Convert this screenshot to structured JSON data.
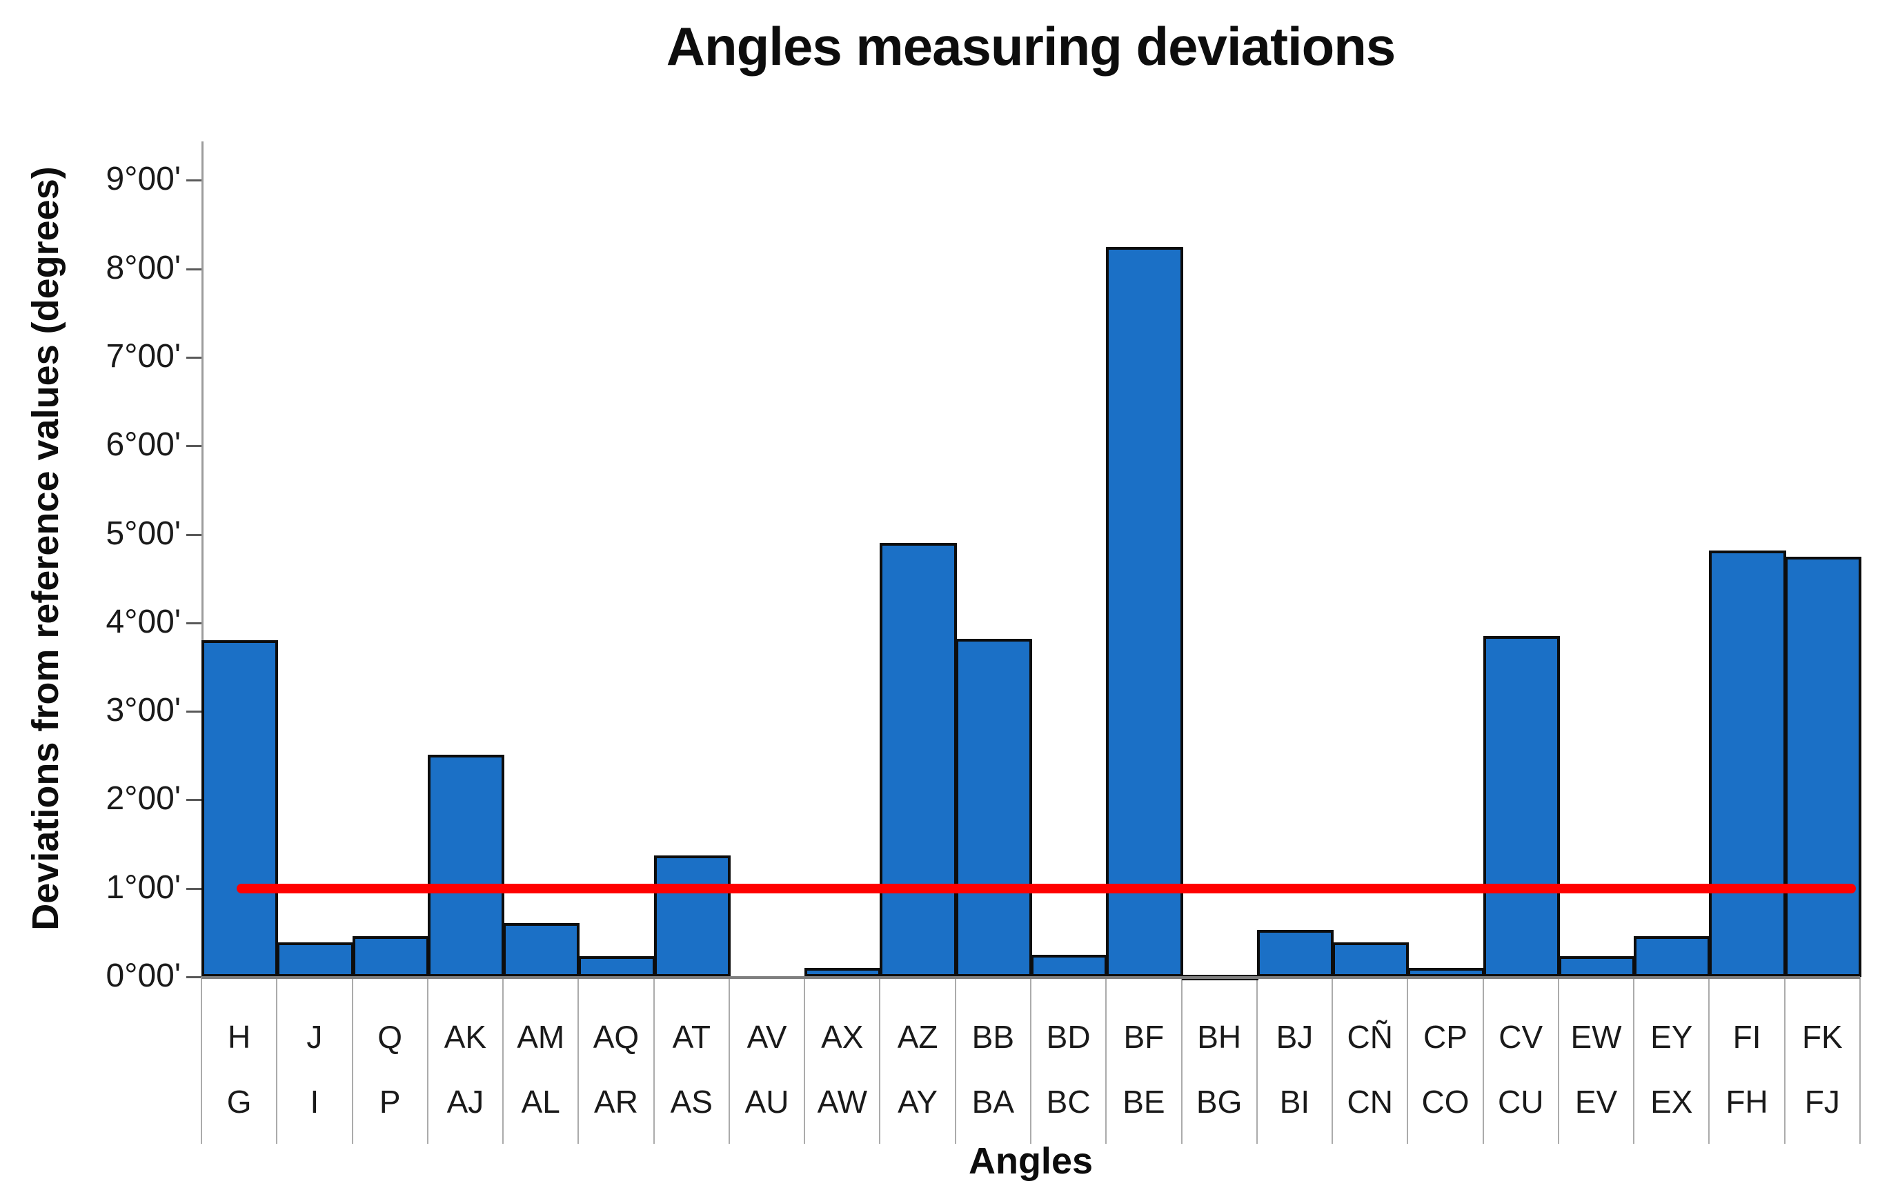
{
  "title": "Angles measuring deviations",
  "chart_data": {
    "type": "bar",
    "title": "Angles measuring deviations",
    "xlabel": "Angles",
    "ylabel": "Deviations from reference values (degrees)",
    "categories_top": [
      "H",
      "J",
      "Q",
      "AK",
      "AM",
      "AQ",
      "AT",
      "AV",
      "AX",
      "AZ",
      "BB",
      "BD",
      "BF",
      "BH",
      "BJ",
      "CÑ",
      "CP",
      "CV",
      "EW",
      "EY",
      "FI",
      "FK"
    ],
    "categories_bottom": [
      "G",
      "I",
      "P",
      "AJ",
      "AL",
      "AR",
      "AS",
      "AU",
      "AW",
      "AY",
      "BA",
      "BC",
      "BE",
      "BG",
      "BI",
      "CN",
      "CO",
      "CU",
      "EV",
      "EX",
      "FH",
      "FJ"
    ],
    "values_degrees": [
      3.8,
      0.39,
      0.46,
      2.51,
      0.61,
      0.23,
      1.37,
      0,
      0.1,
      4.9,
      3.82,
      0.25,
      8.25,
      0.02,
      0.53,
      0.39,
      0.1,
      3.85,
      0.23,
      0.46,
      4.82,
      4.75
    ],
    "ytick_labels": [
      "0°00'",
      "1°00'",
      "2°00'",
      "3°00'",
      "4°00'",
      "5°00'",
      "6°00'",
      "7°00'",
      "8°00'",
      "9°00'"
    ],
    "ylim": [
      0,
      9.4
    ],
    "grid": "off",
    "legend": "none",
    "reference_line": {
      "value": 1.0,
      "label": "1°00'",
      "color": "#ff0000"
    },
    "bar_color": "#1b70c6",
    "bar_border_color": "#0d0d0d"
  }
}
